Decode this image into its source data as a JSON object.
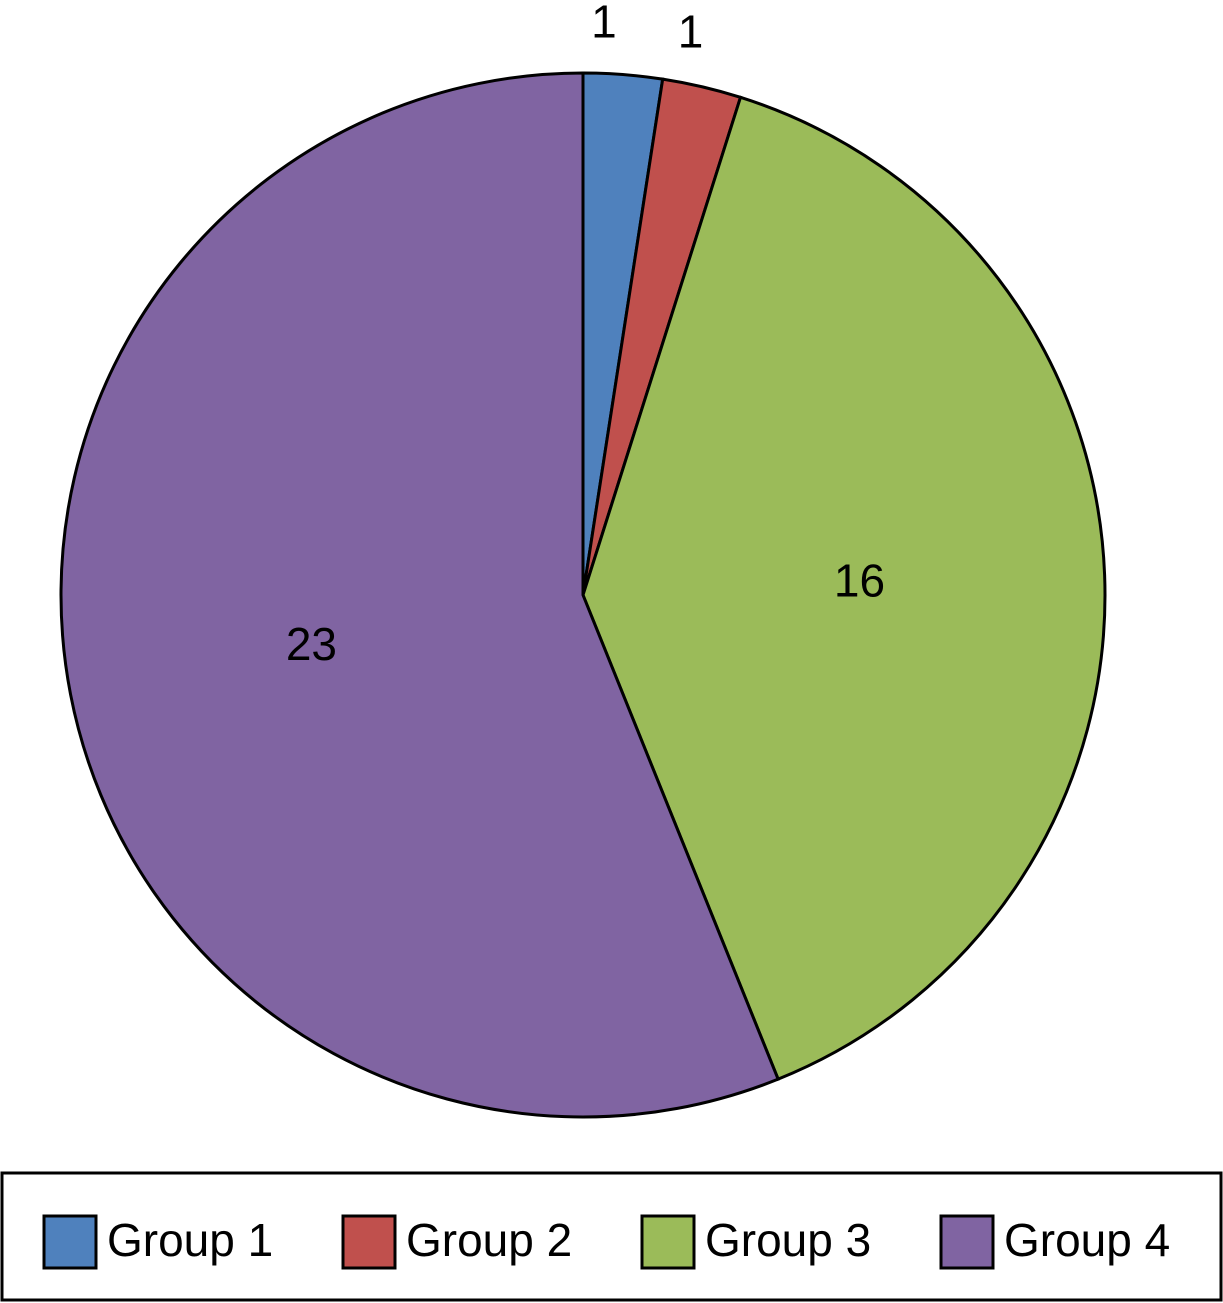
{
  "chart_data": {
    "type": "pie",
    "categories": [
      "Group 1",
      "Group 2",
      "Group 3",
      "Group 4"
    ],
    "values": [
      1,
      1,
      16,
      23
    ],
    "colors": [
      "#4f81bd",
      "#c0504d",
      "#9bbb59",
      "#8064a2"
    ],
    "legend": "bottom"
  }
}
